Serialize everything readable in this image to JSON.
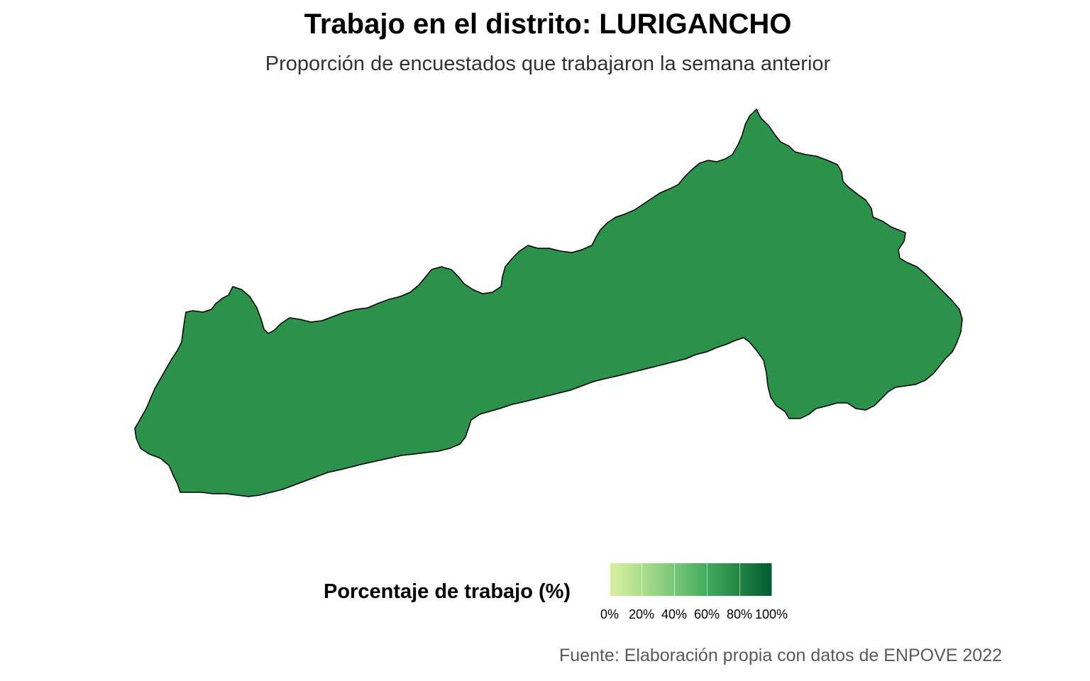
{
  "title": "Trabajo en el distrito: LURIGANCHO",
  "subtitle": "Proporción de encuestados que trabajaron la semana anterior",
  "map": {
    "region_name": "LURIGANCHO",
    "fill_color": "#2C914B",
    "stroke_color": "#000000"
  },
  "legend": {
    "title": "Porcentaje de trabajo (%)",
    "gradient_colors": [
      "#D9F0A3",
      "#ADDD8E",
      "#78C679",
      "#41AB5D",
      "#238443",
      "#005A32"
    ],
    "ticks": [
      "0%",
      "20%",
      "40%",
      "60%",
      "80%",
      "100%"
    ]
  },
  "caption": "Fuente: Elaboración propia con datos de ENPOVE 2022"
}
